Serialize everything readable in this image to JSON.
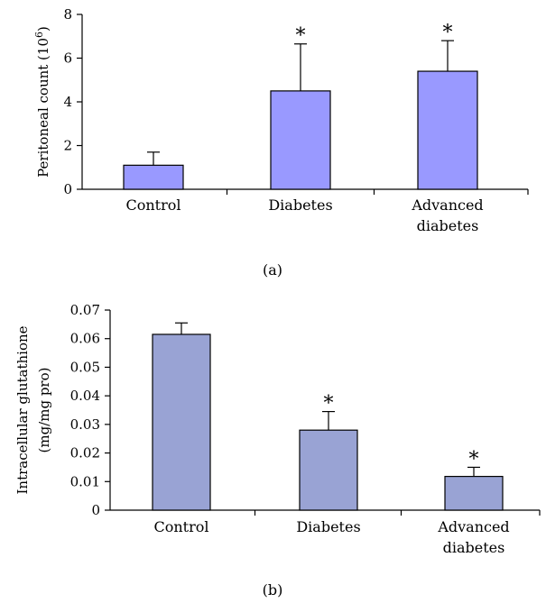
{
  "chart_data": [
    {
      "type": "bar",
      "panel_label": "(a)",
      "ylabel": "Peritoneal count (10",
      "ylabel_sup": "6",
      "ylabel_close": ")",
      "ylim": [
        0,
        8
      ],
      "yticks": [
        "0",
        "2",
        "4",
        "6",
        "8"
      ],
      "categories": [
        [
          "Control"
        ],
        [
          "Diabetes"
        ],
        [
          "Advanced",
          "diabetes"
        ]
      ],
      "values": [
        1.1,
        4.5,
        5.4
      ],
      "errors": [
        0.6,
        2.15,
        1.4
      ],
      "significance": [
        "",
        "*",
        "*"
      ],
      "bar_color": "#9999ff"
    },
    {
      "type": "bar",
      "panel_label": "(b)",
      "ylabel_lines": [
        "Intracellular glutathione",
        "(mg/mg pro)"
      ],
      "ylim": [
        0,
        0.07
      ],
      "yticks": [
        "0",
        "0.01",
        "0.02",
        "0.03",
        "0.04",
        "0.05",
        "0.06",
        "0.07"
      ],
      "categories": [
        [
          "Control"
        ],
        [
          "Diabetes"
        ],
        [
          "Advanced",
          "diabetes"
        ]
      ],
      "values": [
        0.0615,
        0.028,
        0.0118
      ],
      "errors": [
        0.004,
        0.0065,
        0.0032
      ],
      "significance": [
        "",
        "*",
        "*"
      ],
      "bar_color": "#99a3d4"
    }
  ]
}
